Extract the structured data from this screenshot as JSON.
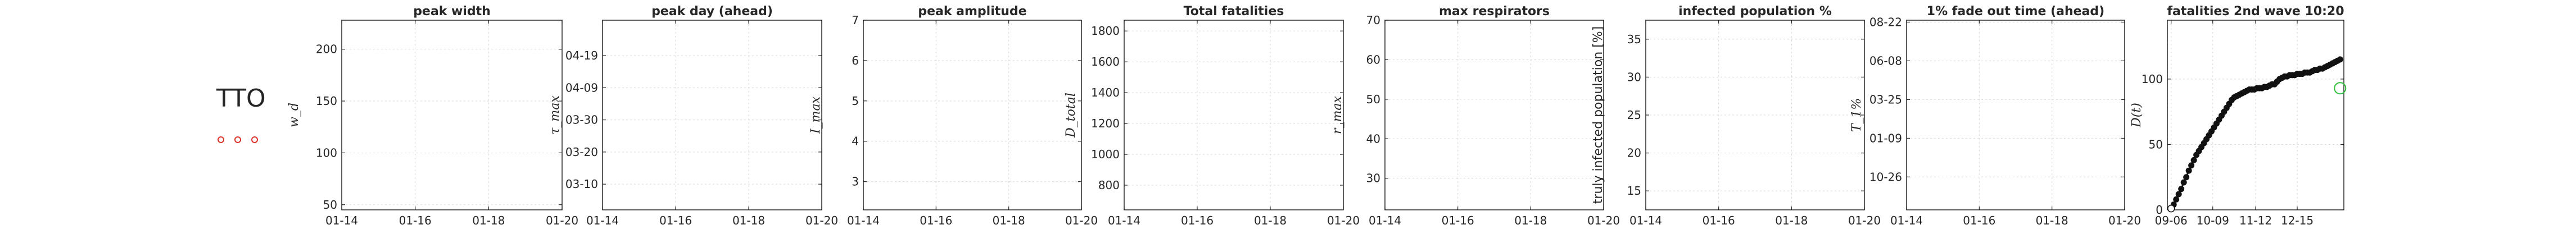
{
  "legend": {
    "label": "TTO",
    "markers": 3,
    "marker_color": "#e0302a"
  },
  "chart_data": [
    {
      "type": "scatter",
      "title": "peak width",
      "ylabel": "w_d",
      "ylabel_kind": "math",
      "xticks": [
        "01-14",
        "01-16",
        "01-18",
        "01-20"
      ],
      "yticks": [
        {
          "label": "50",
          "v": 50
        },
        {
          "label": "100",
          "v": 100
        },
        {
          "label": "150",
          "v": 150
        },
        {
          "label": "200",
          "v": 200
        }
      ],
      "ylim": [
        45,
        228
      ],
      "grid": true,
      "series": []
    },
    {
      "type": "scatter",
      "title": "peak day (ahead)",
      "ylabel": "τ_max",
      "ylabel_kind": "math",
      "xticks": [
        "01-14",
        "01-16",
        "01-18",
        "01-20"
      ],
      "yticks": [
        {
          "label": "03-10",
          "v": 0
        },
        {
          "label": "03-20",
          "v": 10
        },
        {
          "label": "03-30",
          "v": 20
        },
        {
          "label": "04-09",
          "v": 30
        },
        {
          "label": "04-19",
          "v": 40
        }
      ],
      "ylim": [
        -8,
        51
      ],
      "grid": true,
      "series": []
    },
    {
      "type": "scatter",
      "title": "peak amplitude",
      "ylabel": "I_max",
      "ylabel_kind": "math",
      "xticks": [
        "01-14",
        "01-16",
        "01-18",
        "01-20"
      ],
      "yticks": [
        {
          "label": "3",
          "v": 3
        },
        {
          "label": "4",
          "v": 4
        },
        {
          "label": "5",
          "v": 5
        },
        {
          "label": "6",
          "v": 6
        },
        {
          "label": "7",
          "v": 7
        }
      ],
      "ylim": [
        2.3,
        7
      ],
      "grid": true,
      "series": []
    },
    {
      "type": "scatter",
      "title": "Total fatalities",
      "ylabel": "D_total",
      "ylabel_kind": "math",
      "xticks": [
        "01-14",
        "01-16",
        "01-18",
        "01-20"
      ],
      "yticks": [
        {
          "label": "800",
          "v": 800
        },
        {
          "label": "1000",
          "v": 1000
        },
        {
          "label": "1200",
          "v": 1200
        },
        {
          "label": "1400",
          "v": 1400
        },
        {
          "label": "1600",
          "v": 1600
        },
        {
          "label": "1800",
          "v": 1800
        }
      ],
      "ylim": [
        640,
        1870
      ],
      "grid": true,
      "series": []
    },
    {
      "type": "scatter",
      "title": "max respirators",
      "ylabel": "r_max",
      "ylabel_kind": "math",
      "xticks": [
        "01-14",
        "01-16",
        "01-18",
        "01-20"
      ],
      "yticks": [
        {
          "label": "30",
          "v": 30
        },
        {
          "label": "40",
          "v": 40
        },
        {
          "label": "50",
          "v": 50
        },
        {
          "label": "60",
          "v": 60
        },
        {
          "label": "70",
          "v": 70
        }
      ],
      "ylim": [
        22,
        70
      ],
      "grid": true,
      "series": []
    },
    {
      "type": "scatter",
      "title": "infected population %",
      "ylabel": "truly infected population [%]",
      "ylabel_kind": "text",
      "xticks": [
        "01-14",
        "01-16",
        "01-18",
        "01-20"
      ],
      "yticks": [
        {
          "label": "15",
          "v": 15
        },
        {
          "label": "20",
          "v": 20
        },
        {
          "label": "25",
          "v": 25
        },
        {
          "label": "30",
          "v": 30
        },
        {
          "label": "35",
          "v": 35
        }
      ],
      "ylim": [
        12.5,
        37.5
      ],
      "grid": true,
      "series": []
    },
    {
      "type": "scatter",
      "title": "1% fade out time (ahead)",
      "ylabel": "T_1%",
      "ylabel_kind": "math",
      "xticks": [
        "01-14",
        "01-16",
        "01-18",
        "01-20"
      ],
      "yticks": [
        {
          "label": "10-26",
          "v": 0
        },
        {
          "label": "01-09",
          "v": 1
        },
        {
          "label": "03-25",
          "v": 2
        },
        {
          "label": "06-08",
          "v": 3
        },
        {
          "label": "08-22",
          "v": 4
        }
      ],
      "ylim": [
        -0.85,
        4.05
      ],
      "grid": true,
      "series": []
    },
    {
      "type": "line",
      "title": "fatalities 2nd wave 10:20",
      "ylabel": "D(t)",
      "ylabel_kind": "math",
      "xticks": [
        {
          "label": "09-06",
          "v": 0
        },
        {
          "label": "10-09",
          "v": 33
        },
        {
          "label": "11-12",
          "v": 67
        },
        {
          "label": "12-15",
          "v": 100
        }
      ],
      "xlim": [
        -3,
        137
      ],
      "yticks": [
        {
          "label": "0",
          "v": 0
        },
        {
          "label": "50",
          "v": 50
        },
        {
          "label": "100",
          "v": 100
        }
      ],
      "ylim": [
        0,
        145
      ],
      "grid": true,
      "series": [
        {
          "kind": "line-markers",
          "color": "#111111",
          "x": [
            0,
            2,
            4,
            6,
            8,
            10,
            12,
            14,
            16,
            18,
            20,
            22,
            24,
            26,
            28,
            30,
            32,
            34,
            36,
            38,
            40,
            42,
            44,
            46,
            48,
            50,
            52,
            54,
            56,
            58,
            60,
            62,
            64,
            66,
            68,
            70,
            72,
            74,
            76,
            78,
            80,
            82,
            84,
            86,
            88,
            90,
            92,
            94,
            96,
            98,
            100,
            102,
            104,
            106,
            108,
            110,
            112,
            114,
            116,
            118,
            120,
            122,
            124,
            126,
            128,
            130,
            132,
            134
          ],
          "y": [
            1,
            4,
            8,
            12,
            16,
            21,
            25,
            30,
            34,
            38,
            42,
            45,
            48,
            51,
            54,
            57,
            60,
            63,
            66,
            69,
            72,
            75,
            78,
            81,
            84,
            86,
            87,
            88,
            89,
            90,
            91,
            92,
            92,
            92,
            93,
            93,
            93,
            94,
            94,
            95,
            96,
            96,
            98,
            100,
            101,
            102,
            102,
            103,
            103,
            103,
            104,
            104,
            104,
            105,
            105,
            105,
            106,
            107,
            107,
            108,
            108,
            109,
            110,
            111,
            112,
            113,
            114,
            115
          ]
        },
        {
          "kind": "open-marker",
          "color": "#2fbf3a",
          "x": [
            134
          ],
          "y": [
            93
          ]
        }
      ]
    }
  ]
}
